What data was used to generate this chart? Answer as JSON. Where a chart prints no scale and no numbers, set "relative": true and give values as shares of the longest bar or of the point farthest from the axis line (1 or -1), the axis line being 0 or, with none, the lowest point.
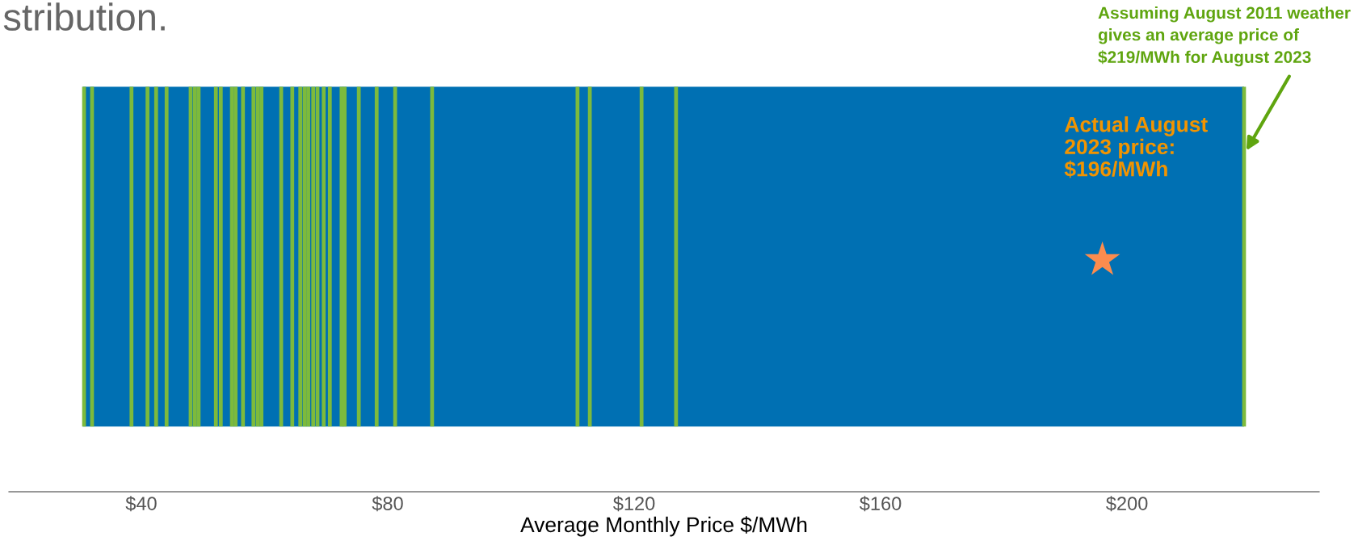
{
  "chart_data": {
    "type": "bar",
    "title": "stribution.",
    "xlabel": "Average Monthly Price $/MWh",
    "relative": true,
    "xlim": [
      18.5,
      231.2
    ],
    "xticks": [
      {
        "value": 40,
        "label": "$40"
      },
      {
        "value": 80,
        "label": "$80"
      },
      {
        "value": 120,
        "label": "$120"
      },
      {
        "value": 160,
        "label": "$160"
      },
      {
        "value": 200,
        "label": "$200"
      }
    ],
    "grid": false,
    "bands": [
      {
        "axis": "x",
        "from": 30.5,
        "to": 219,
        "color": "#0070b3"
      }
    ],
    "series": [
      {
        "color": "#7dba3c",
        "x": [
          30.7,
          32.0,
          38.4,
          41.0,
          42.4,
          44.1,
          48.0,
          48.7,
          49.3,
          52.1,
          52.9,
          54.7,
          55.3,
          56.5,
          58.2,
          58.9,
          59.5,
          62.7,
          64.5,
          65.8,
          66.5,
          67.1,
          67.9,
          68.6,
          69.6,
          70.6,
          72.5,
          73.0,
          75.3,
          78.2,
          81.2,
          87.2,
          110.8,
          112.8,
          121.2,
          126.8,
          219
        ],
        "values": [
          1,
          1,
          1,
          1,
          1,
          1,
          1,
          1,
          1,
          1,
          1,
          1,
          1,
          1,
          1,
          1,
          1,
          1,
          1,
          1,
          1,
          1,
          1,
          1,
          1,
          1,
          1,
          1,
          1,
          1,
          1,
          1,
          1,
          1,
          1,
          1,
          1
        ]
      },
      {
        "type": "scatter",
        "color": "#fb8c4e",
        "marker": "star",
        "x": [
          196
        ],
        "values": [
          0.49
        ]
      }
    ],
    "annotations": [
      "Actual August\n2023 price:\n$196/MWh",
      "Assuming August 2011 weather\ngives an average price of\n$219/MWh for August 2023"
    ]
  }
}
